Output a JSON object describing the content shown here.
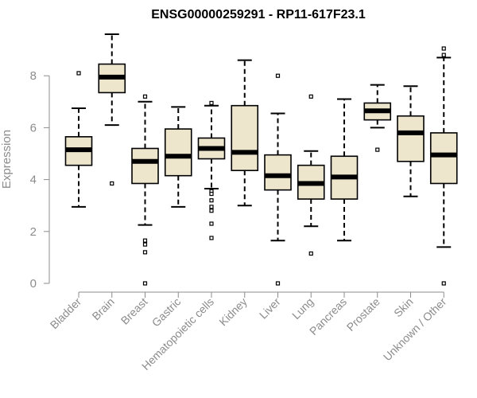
{
  "chart_data": {
    "type": "boxplot",
    "title": "ENSG00000259291 - RP11-617F23.1",
    "xlabel": "",
    "ylabel": "Expression",
    "ylim": [
      0,
      9.6
    ],
    "yticks": [
      0,
      2,
      4,
      6,
      8
    ],
    "categories": [
      "Bladder",
      "Brain",
      "Breast",
      "Gastric",
      "Hematopoietic cells",
      "Kidney",
      "Liver",
      "Lung",
      "Pancreas",
      "Prostate",
      "Skin",
      "Unknown / Other"
    ],
    "boxes": [
      {
        "name": "Bladder",
        "whisker_low": 2.95,
        "q1": 4.55,
        "median": 5.15,
        "q3": 5.65,
        "whisker_high": 6.75,
        "outliers": [
          8.1
        ]
      },
      {
        "name": "Brain",
        "whisker_low": 6.1,
        "q1": 7.35,
        "median": 7.95,
        "q3": 8.45,
        "whisker_high": 9.6,
        "outliers": [
          3.85
        ]
      },
      {
        "name": "Breast",
        "whisker_low": 2.25,
        "q1": 3.85,
        "median": 4.7,
        "q3": 5.2,
        "whisker_high": 7.0,
        "outliers": [
          7.2,
          1.65,
          1.5,
          1.2,
          0.0
        ]
      },
      {
        "name": "Gastric",
        "whisker_low": 2.95,
        "q1": 4.15,
        "median": 4.9,
        "q3": 5.95,
        "whisker_high": 6.8,
        "outliers": []
      },
      {
        "name": "Hematopoietic cells",
        "whisker_low": 3.65,
        "q1": 4.8,
        "median": 5.2,
        "q3": 5.6,
        "whisker_high": 6.85,
        "outliers": [
          6.95,
          3.55,
          3.45,
          3.2,
          2.95,
          2.8,
          2.3,
          1.75
        ]
      },
      {
        "name": "Kidney",
        "whisker_low": 3.0,
        "q1": 4.35,
        "median": 5.05,
        "q3": 6.85,
        "whisker_high": 8.6,
        "outliers": []
      },
      {
        "name": "Liver",
        "whisker_low": 1.65,
        "q1": 3.6,
        "median": 4.15,
        "q3": 4.95,
        "whisker_high": 6.55,
        "outliers": [
          8.0,
          0.0
        ]
      },
      {
        "name": "Lung",
        "whisker_low": 2.2,
        "q1": 3.25,
        "median": 3.85,
        "q3": 4.55,
        "whisker_high": 5.1,
        "outliers": [
          7.2,
          1.15
        ]
      },
      {
        "name": "Pancreas",
        "whisker_low": 1.65,
        "q1": 3.25,
        "median": 4.1,
        "q3": 4.9,
        "whisker_high": 7.1,
        "outliers": []
      },
      {
        "name": "Prostate",
        "whisker_low": 6.0,
        "q1": 6.3,
        "median": 6.65,
        "q3": 6.95,
        "whisker_high": 7.65,
        "outliers": [
          5.15
        ]
      },
      {
        "name": "Skin",
        "whisker_low": 3.35,
        "q1": 4.7,
        "median": 5.8,
        "q3": 6.45,
        "whisker_high": 7.6,
        "outliers": []
      },
      {
        "name": "Unknown / Other",
        "whisker_low": 1.4,
        "q1": 3.85,
        "median": 4.95,
        "q3": 5.8,
        "whisker_high": 8.7,
        "outliers": [
          9.05,
          8.8,
          0.0
        ]
      }
    ],
    "colors": {
      "box_fill": "#ede6cc",
      "box_stroke": "#000000",
      "axis": "#8c8c8c",
      "tick_text": "#8c8c8c"
    },
    "grid": false,
    "legend": "none"
  }
}
